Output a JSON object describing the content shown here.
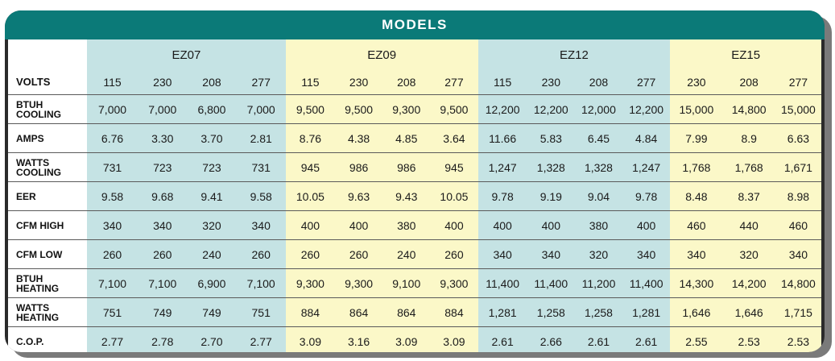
{
  "title": "MODELS",
  "models": [
    "EZ07",
    "EZ09",
    "EZ12",
    "EZ15"
  ],
  "volts_label": "VOLTS",
  "volts": [
    [
      "115",
      "230",
      "208",
      "277"
    ],
    [
      "115",
      "230",
      "208",
      "277"
    ],
    [
      "115",
      "230",
      "208",
      "277"
    ],
    [
      "230",
      "208",
      "277"
    ]
  ],
  "rows": [
    {
      "label": "BTUH COOLING",
      "values": [
        [
          "7,000",
          "7,000",
          "6,800",
          "7,000"
        ],
        [
          "9,500",
          "9,500",
          "9,300",
          "9,500"
        ],
        [
          "12,200",
          "12,200",
          "12,000",
          "12,200"
        ],
        [
          "15,000",
          "14,800",
          "15,000"
        ]
      ]
    },
    {
      "label": "AMPS",
      "values": [
        [
          "6.76",
          "3.30",
          "3.70",
          "2.81"
        ],
        [
          "8.76",
          "4.38",
          "4.85",
          "3.64"
        ],
        [
          "11.66",
          "5.83",
          "6.45",
          "4.84"
        ],
        [
          "7.99",
          "8.9",
          "6.63"
        ]
      ]
    },
    {
      "label": "WATTS COOLING",
      "values": [
        [
          "731",
          "723",
          "723",
          "731"
        ],
        [
          "945",
          "986",
          "986",
          "945"
        ],
        [
          "1,247",
          "1,328",
          "1,328",
          "1,247"
        ],
        [
          "1,768",
          "1,768",
          "1,671"
        ]
      ]
    },
    {
      "label": "EER",
      "values": [
        [
          "9.58",
          "9.68",
          "9.41",
          "9.58"
        ],
        [
          "10.05",
          "9.63",
          "9.43",
          "10.05"
        ],
        [
          "9.78",
          "9.19",
          "9.04",
          "9.78"
        ],
        [
          "8.48",
          "8.37",
          "8.98"
        ]
      ]
    },
    {
      "label": "CFM HIGH",
      "values": [
        [
          "340",
          "340",
          "320",
          "340"
        ],
        [
          "400",
          "400",
          "380",
          "400"
        ],
        [
          "400",
          "400",
          "380",
          "400"
        ],
        [
          "460",
          "440",
          "460"
        ]
      ]
    },
    {
      "label": "CFM LOW",
      "values": [
        [
          "260",
          "260",
          "240",
          "260"
        ],
        [
          "260",
          "260",
          "240",
          "260"
        ],
        [
          "340",
          "340",
          "320",
          "340"
        ],
        [
          "340",
          "320",
          "340"
        ]
      ]
    },
    {
      "label": "BTUH HEATING",
      "values": [
        [
          "7,100",
          "7,100",
          "6,900",
          "7,100"
        ],
        [
          "9,300",
          "9,300",
          "9,100",
          "9,300"
        ],
        [
          "11,400",
          "11,400",
          "11,200",
          "11,400"
        ],
        [
          "14,300",
          "14,200",
          "14,800"
        ]
      ]
    },
    {
      "label": "WATTS HEATING",
      "values": [
        [
          "751",
          "749",
          "749",
          "751"
        ],
        [
          "884",
          "864",
          "864",
          "884"
        ],
        [
          "1,281",
          "1,258",
          "1,258",
          "1,281"
        ],
        [
          "1,646",
          "1,646",
          "1,715"
        ]
      ]
    },
    {
      "label": "C.O.P.",
      "values": [
        [
          "2.77",
          "2.78",
          "2.70",
          "2.77"
        ],
        [
          "3.09",
          "3.16",
          "3.09",
          "3.09"
        ],
        [
          "2.61",
          "2.66",
          "2.61",
          "2.61"
        ],
        [
          "2.55",
          "2.53",
          "2.53"
        ]
      ]
    }
  ],
  "colors": {
    "header": "#0b7a78",
    "group_a": "#c5e3e4",
    "group_b": "#fbf8c8",
    "frame": "#2a2a2a"
  }
}
